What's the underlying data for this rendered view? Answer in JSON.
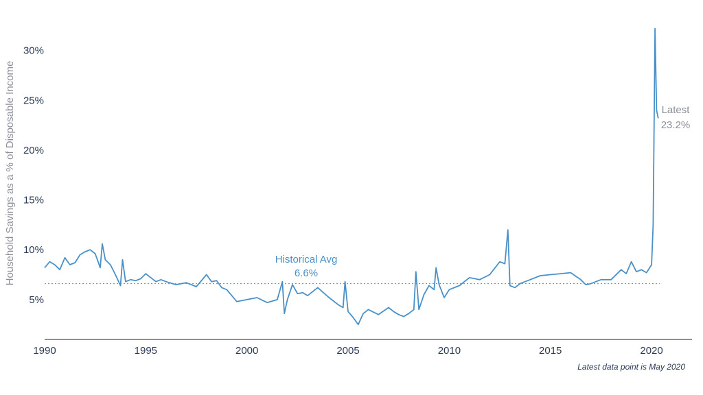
{
  "chart_data": {
    "type": "line",
    "title": "",
    "xlabel": "",
    "ylabel": "Household Savings as a % of Disposable Income",
    "xlim": [
      1990,
      2022
    ],
    "ylim": [
      1,
      33
    ],
    "x_ticks": [
      1990,
      1995,
      2000,
      2005,
      2010,
      2015,
      2020
    ],
    "x_tick_labels": [
      "1990",
      "1995",
      "2000",
      "2005",
      "2010",
      "2015",
      "2020"
    ],
    "y_ticks": [
      5,
      10,
      15,
      20,
      25,
      30
    ],
    "y_tick_labels": [
      "5%",
      "10%",
      "15%",
      "20%",
      "25%",
      "30%"
    ],
    "grid": false,
    "colors": {
      "series": "#4a90c8",
      "reference": "#4a90c8",
      "latest_label": "#8a8f99",
      "axis_text": "#2b3a55"
    },
    "series": [
      {
        "x": [
          1990.0,
          1990.25,
          1990.5,
          1990.75,
          1991.0,
          1991.25,
          1991.5,
          1991.75,
          1992.0,
          1992.25,
          1992.5,
          1992.75,
          1992.85,
          1993.0,
          1993.25,
          1993.5,
          1993.75,
          1993.85,
          1994.0,
          1994.25,
          1994.5,
          1994.75,
          1995.0,
          1995.25,
          1995.5,
          1995.75,
          1996.0,
          1996.5,
          1997.0,
          1997.5,
          1998.0,
          1998.25,
          1998.5,
          1998.75,
          1999.0,
          1999.5,
          2000.0,
          2000.5,
          2001.0,
          2001.5,
          2001.75,
          2001.85,
          2002.0,
          2002.25,
          2002.5,
          2002.75,
          2003.0,
          2003.5,
          2004.0,
          2004.5,
          2004.75,
          2004.85,
          2005.0,
          2005.25,
          2005.5,
          2005.75,
          2006.0,
          2006.5,
          2007.0,
          2007.25,
          2007.5,
          2007.75,
          2008.0,
          2008.25,
          2008.35,
          2008.5,
          2008.75,
          2009.0,
          2009.25,
          2009.35,
          2009.5,
          2009.75,
          2010.0,
          2010.5,
          2011.0,
          2011.5,
          2012.0,
          2012.5,
          2012.75,
          2012.9,
          2013.0,
          2013.25,
          2013.5,
          2014.0,
          2014.5,
          2015.0,
          2015.5,
          2016.0,
          2016.5,
          2016.75,
          2017.0,
          2017.5,
          2018.0,
          2018.5,
          2018.75,
          2019.0,
          2019.25,
          2019.5,
          2019.75,
          2020.0,
          2020.08,
          2020.17,
          2020.25,
          2020.33
        ],
        "values": [
          8.2,
          8.8,
          8.5,
          8.0,
          9.2,
          8.5,
          8.7,
          9.5,
          9.8,
          10.0,
          9.6,
          8.2,
          10.6,
          9.0,
          8.5,
          7.5,
          6.4,
          9.0,
          6.8,
          7.0,
          6.9,
          7.1,
          7.6,
          7.2,
          6.8,
          7.0,
          6.8,
          6.5,
          6.7,
          6.3,
          7.5,
          6.8,
          6.9,
          6.2,
          6.0,
          4.8,
          5.0,
          5.2,
          4.7,
          5.0,
          6.8,
          3.6,
          5.0,
          6.5,
          5.6,
          5.7,
          5.4,
          6.2,
          5.3,
          4.5,
          4.2,
          6.8,
          3.8,
          3.2,
          2.5,
          3.6,
          4.0,
          3.5,
          4.2,
          3.8,
          3.5,
          3.3,
          3.6,
          4.0,
          7.8,
          4.0,
          5.5,
          6.4,
          6.0,
          8.2,
          6.5,
          5.2,
          6.0,
          6.4,
          7.2,
          7.0,
          7.5,
          8.8,
          8.6,
          12.0,
          6.4,
          6.2,
          6.6,
          7.0,
          7.4,
          7.5,
          7.6,
          7.7,
          7.0,
          6.5,
          6.6,
          7.0,
          7.0,
          8.0,
          7.6,
          8.8,
          7.8,
          8.0,
          7.7,
          8.5,
          12.5,
          32.2,
          24.0,
          23.2
        ]
      }
    ],
    "reference_line": {
      "value": 6.6,
      "label_line1": "Historical Avg",
      "label_line2": "6.6%"
    },
    "annotation_latest": {
      "label_line1": "Latest",
      "label_line2": "23.2%"
    },
    "footnote": "Latest data point is May 2020"
  }
}
